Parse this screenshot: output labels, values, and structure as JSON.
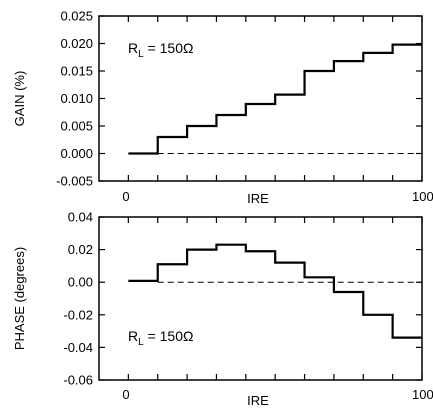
{
  "chart_data": [
    {
      "type": "line",
      "step": true,
      "ylabel": "GAIN (%)",
      "xlabel": "IRE",
      "xlim": [
        -10,
        100
      ],
      "ylim": [
        -0.005,
        0.025
      ],
      "x_ticks": [
        "0",
        "100"
      ],
      "y_ticks": [
        "0.025",
        "0.020",
        "0.015",
        "0.010",
        "0.005",
        "0.000",
        "-0.005"
      ],
      "y_tick_values": [
        0.025,
        0.02,
        0.015,
        0.01,
        0.005,
        0.0,
        -0.005
      ],
      "annotation": {
        "main": "R",
        "sub": "L",
        "rest": " = 150Ω"
      },
      "reference_line": {
        "y": 0.0,
        "style": "dashed"
      },
      "series": [
        {
          "x": [
            0,
            10,
            20,
            30,
            40,
            50,
            60,
            70,
            80,
            90,
            100
          ],
          "y": [
            0.0,
            0.003,
            0.005,
            0.007,
            0.009,
            0.0107,
            0.015,
            0.0168,
            0.0183,
            0.0198,
            0.0198
          ]
        }
      ]
    },
    {
      "type": "line",
      "step": true,
      "ylabel": "PHASE (degrees)",
      "xlabel": "IRE",
      "xlim": [
        -10,
        100
      ],
      "ylim": [
        -0.06,
        0.04
      ],
      "x_ticks": [
        "0",
        "100"
      ],
      "y_ticks": [
        "0.04",
        "0.02",
        "0.00",
        "-0.02",
        "-0.04",
        "-0.06"
      ],
      "y_tick_values": [
        0.04,
        0.02,
        0.0,
        -0.02,
        -0.04,
        -0.06
      ],
      "annotation": {
        "main": "R",
        "sub": "L",
        "rest": " = 150Ω"
      },
      "reference_line": {
        "y": 0.0,
        "style": "dashed"
      },
      "series": [
        {
          "x": [
            0,
            10,
            20,
            30,
            40,
            50,
            60,
            70,
            80,
            90,
            100
          ],
          "y": [
            0.0008,
            0.011,
            0.02,
            0.023,
            0.019,
            0.012,
            0.003,
            -0.006,
            -0.02,
            -0.034,
            -0.034
          ]
        }
      ]
    }
  ]
}
